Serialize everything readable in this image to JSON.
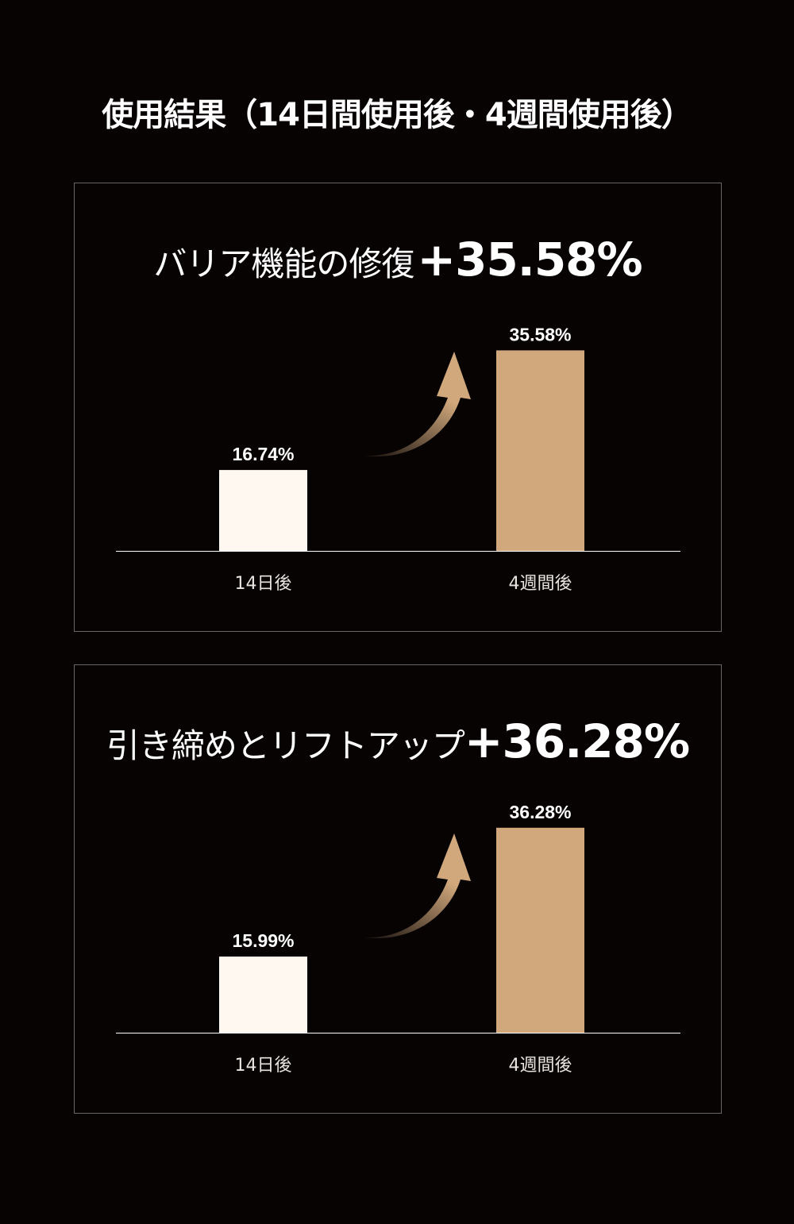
{
  "title": "使用結果（14日間使用後・4週間使用後）",
  "colors": {
    "background": "#070303",
    "bar_before": "#fff8f0",
    "bar_after": "#d0a87c",
    "border": "#6a6666"
  },
  "chart_data": [
    {
      "type": "bar",
      "title": "バリア機能の修復",
      "title_value": "+35.58%",
      "categories": [
        "14日後",
        "4週間後"
      ],
      "values": [
        16.74,
        35.58
      ],
      "value_labels": [
        "16.74%",
        "35.58%"
      ],
      "ylim": [
        4,
        40
      ],
      "grid": false,
      "annotation_icon": "curved-up-arrow-icon"
    },
    {
      "type": "bar",
      "title": "引き締めとリフトアップ",
      "title_value": "+36.28%",
      "categories": [
        "14日後",
        "4週間後"
      ],
      "values": [
        15.99,
        36.28
      ],
      "value_labels": [
        "15.99%",
        "36.28%"
      ],
      "ylim": [
        4,
        40
      ],
      "grid": false,
      "annotation_icon": "curved-up-arrow-icon"
    }
  ]
}
